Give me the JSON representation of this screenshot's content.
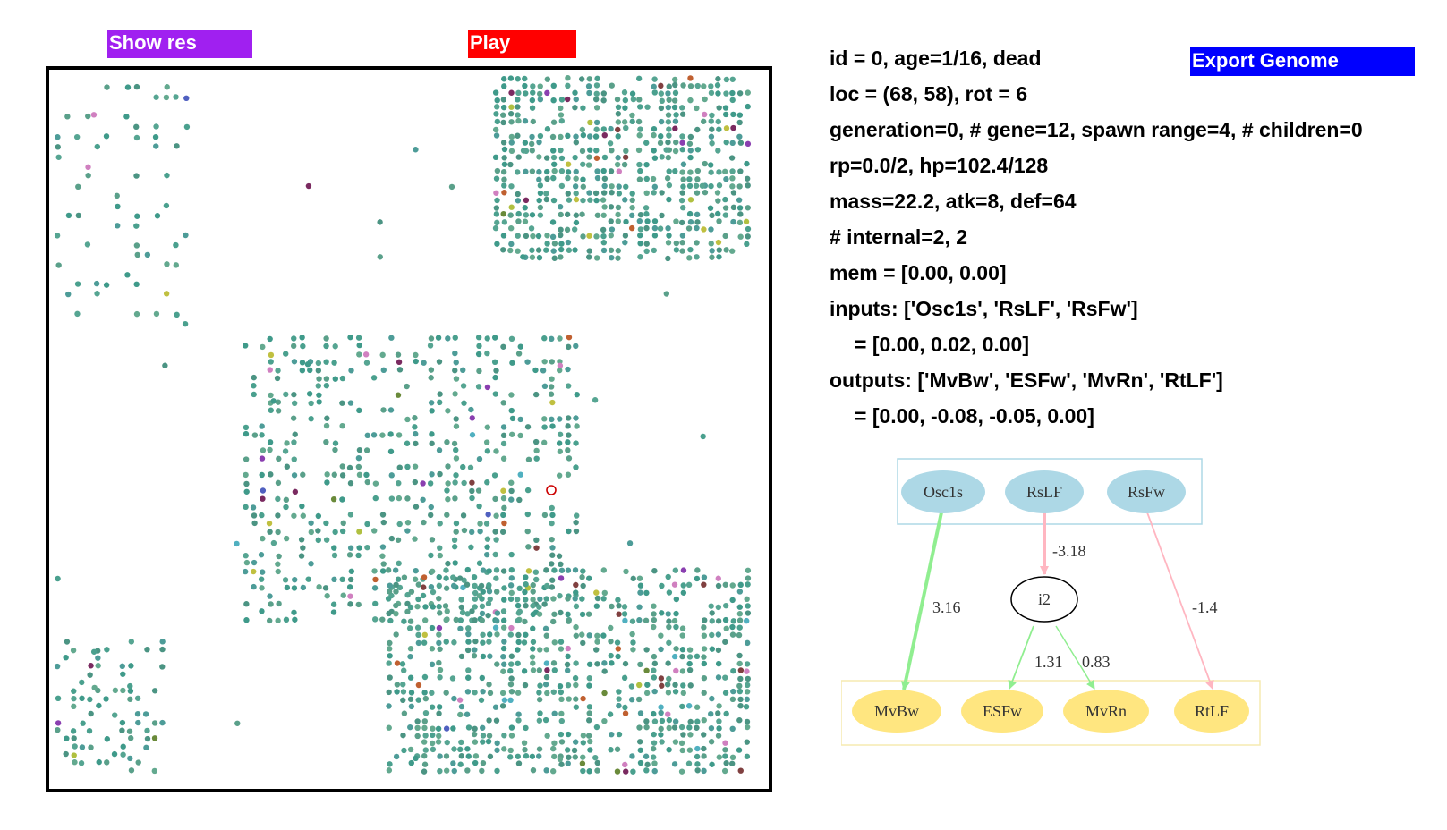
{
  "buttons": {
    "show_res": "Show res",
    "play": "Play",
    "export_genome": "Export Genome"
  },
  "colors": {
    "show_res_button": "#a020f0",
    "play_button": "#ff0000",
    "export_button": "#0000ff",
    "agent_default": "#4a9a8a",
    "selected_agent_ring": "#cc0000",
    "input_node_fill": "#add8e6",
    "output_node_fill": "#ffe680",
    "edge_positive": "#90ee90",
    "edge_negative": "#ffb6c1"
  },
  "info": {
    "line1": "id = 0, age=1/16, dead",
    "line2": "loc = (68, 58), rot = 6",
    "line3": "generation=0, # gene=12, spawn range=4, # children=0",
    "line4": "rp=0.0/2, hp=102.4/128",
    "line5": "mass=22.2, atk=8, def=64",
    "line6": "# internal=2, 2",
    "line7": "mem = [0.00, 0.00]",
    "line8": "inputs: ['Osc1s', 'RsLF', 'RsFw']",
    "line9": "= [0.00, 0.02, 0.00]",
    "line10": "outputs: ['MvBw', 'ESFw', 'MvRn', 'RtLF']",
    "line11": "= [0.00, -0.08, -0.05, 0.00]"
  },
  "graph": {
    "inputs": [
      "Osc1s",
      "RsLF",
      "RsFw"
    ],
    "internal": [
      "i2"
    ],
    "outputs": [
      "MvBw",
      "ESFw",
      "MvRn",
      "RtLF"
    ],
    "edges": [
      {
        "from": "Osc1s",
        "to": "MvBw",
        "weight": "3.16"
      },
      {
        "from": "RsLF",
        "to": "i2",
        "weight": "-3.18"
      },
      {
        "from": "i2",
        "to": "ESFw",
        "weight": "1.31"
      },
      {
        "from": "i2",
        "to": "MvRn",
        "weight": "0.83"
      },
      {
        "from": "RsFw",
        "to": "RtLF",
        "weight": "-1.4"
      }
    ]
  }
}
